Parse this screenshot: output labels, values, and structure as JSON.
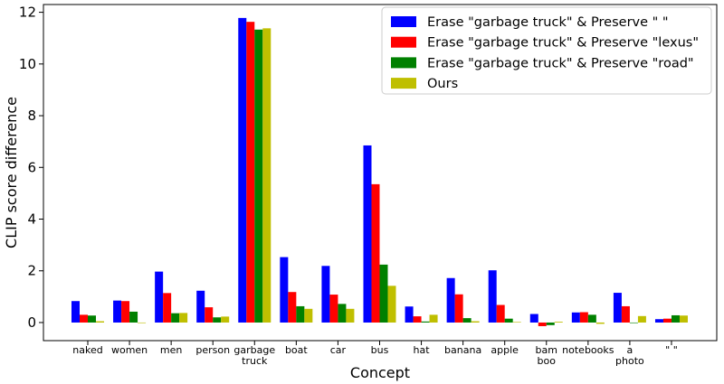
{
  "chart_data": {
    "type": "bar",
    "xlabel": "Concept",
    "ylabel": "CLIP score difference",
    "ylim": [
      -0.7,
      12.3
    ],
    "yticks": [
      0,
      2,
      4,
      6,
      8,
      10,
      12
    ],
    "legend_position": "top-right",
    "categories": [
      [
        "naked"
      ],
      [
        "women"
      ],
      [
        "men"
      ],
      [
        "person"
      ],
      [
        "garbage",
        "truck"
      ],
      [
        "boat"
      ],
      [
        "car"
      ],
      [
        "bus"
      ],
      [
        "hat"
      ],
      [
        "banana"
      ],
      [
        "apple"
      ],
      [
        "bam",
        "boo"
      ],
      [
        "notebooks"
      ],
      [
        "a",
        "photo"
      ],
      [
        "\" \""
      ]
    ],
    "series": [
      {
        "name": "Erase \"garbage truck\" & Preserve \" \"",
        "color": "#0000ff",
        "values": [
          0.83,
          0.85,
          1.97,
          1.23,
          11.78,
          2.53,
          2.19,
          6.85,
          0.62,
          1.72,
          2.02,
          0.33,
          0.39,
          1.15,
          0.13
        ]
      },
      {
        "name": "Erase \"garbage truck\" & Preserve \"lexus\"",
        "color": "#ff0000",
        "values": [
          0.3,
          0.83,
          1.14,
          0.59,
          11.63,
          1.18,
          1.08,
          5.35,
          0.24,
          1.09,
          0.68,
          -0.14,
          0.4,
          0.63,
          0.15
        ]
      },
      {
        "name": "Erase \"garbage truck\" & Preserve \"road\"",
        "color": "#008000",
        "values": [
          0.27,
          0.42,
          0.36,
          0.2,
          11.33,
          0.63,
          0.72,
          2.24,
          0.04,
          0.17,
          0.15,
          -0.1,
          0.3,
          0.0,
          0.28
        ]
      },
      {
        "name": "Ours",
        "color": "#bfbf00",
        "values": [
          0.05,
          -0.02,
          0.37,
          0.23,
          11.38,
          0.53,
          0.53,
          1.42,
          0.3,
          0.05,
          0.02,
          0.03,
          -0.05,
          0.25,
          0.27
        ]
      }
    ]
  }
}
